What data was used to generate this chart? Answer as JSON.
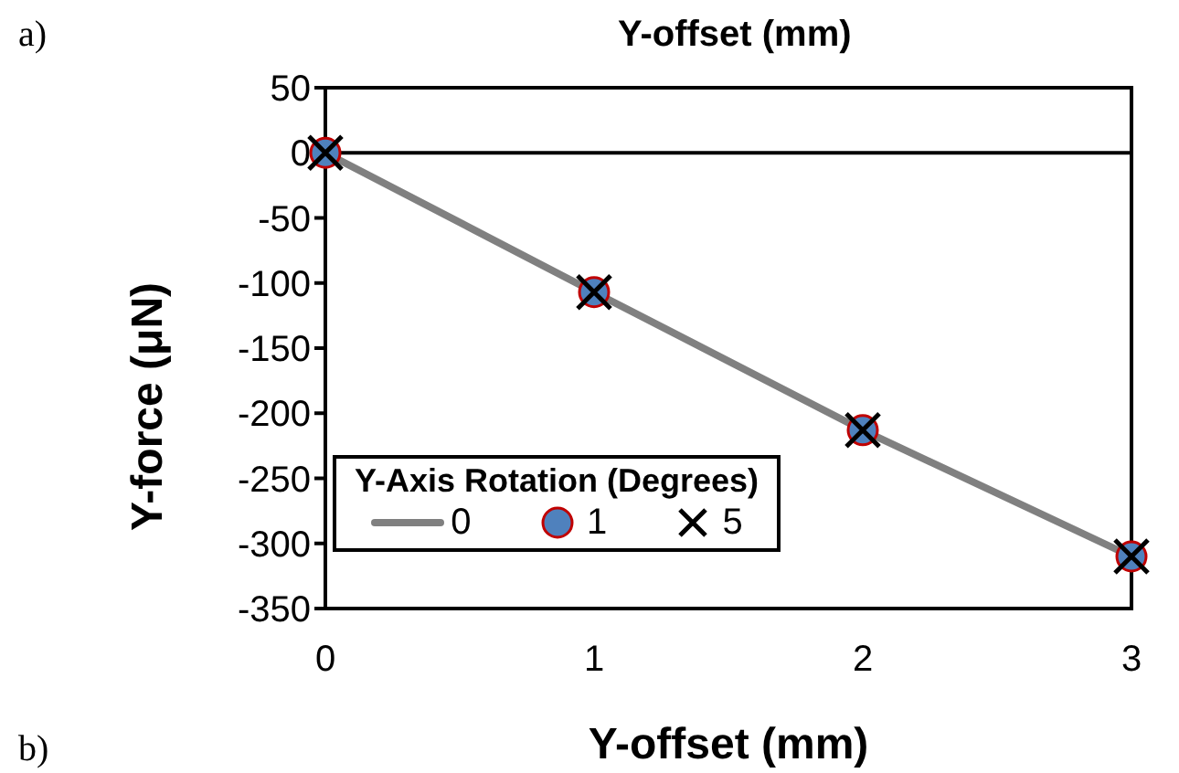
{
  "chart_data": {
    "type": "line",
    "xlabel": "Y-offset (mm)",
    "ylabel": "Y-force (μN)",
    "legend_title": "Y-Axis Rotation  (Degrees)",
    "x": [
      0,
      1,
      2,
      3
    ],
    "xlim": [
      0,
      3
    ],
    "xticks": [
      0,
      1,
      2,
      3
    ],
    "ylim": [
      -350,
      50
    ],
    "yticks": [
      50,
      0,
      -50,
      -100,
      -150,
      -200,
      -250,
      -300,
      -350
    ],
    "grid": false,
    "legend": "bottom left",
    "series": [
      {
        "name": "0",
        "type": "line",
        "color": "#808080",
        "marker": "none",
        "values": [
          0,
          -107,
          -213,
          -310
        ]
      },
      {
        "name": "1",
        "type": "scatter",
        "color": "#4f81bd",
        "marker": "circle",
        "values": [
          0,
          -107,
          -213,
          -310
        ]
      },
      {
        "name": "5",
        "type": "scatter",
        "color": "#000000",
        "marker": "cross",
        "values": [
          0,
          -107,
          -213,
          -310
        ]
      }
    ],
    "ref_lines": [
      {
        "axis": "y",
        "value": 0
      }
    ],
    "annotations": [
      "a)",
      "b)",
      "Y-offset (mm)"
    ]
  }
}
